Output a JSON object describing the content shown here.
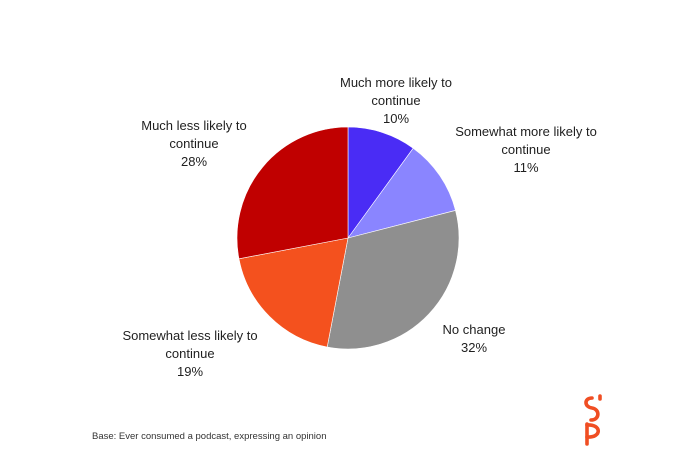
{
  "footnote": "Base: Ever consumed a podcast, expressing an opinion",
  "logo": {
    "icon": "sp-monogram-logo",
    "color": "#f04e23"
  },
  "chart_data": {
    "type": "pie",
    "start_angle_deg": 0,
    "direction": "clockwise",
    "slices": [
      {
        "label_lines": [
          "Much more likely to",
          "continue"
        ],
        "value_label": "10%",
        "value": 10,
        "color": "#4a2cf5"
      },
      {
        "label_lines": [
          "Somewhat more likely to",
          "continue"
        ],
        "value_label": "11%",
        "value": 11,
        "color": "#8a85ff"
      },
      {
        "label_lines": [
          "No change"
        ],
        "value_label": "32%",
        "value": 32,
        "color": "#8f8f8f"
      },
      {
        "label_lines": [
          "Somewhat less likely to",
          "continue"
        ],
        "value_label": "19%",
        "value": 19,
        "color": "#f4511e"
      },
      {
        "label_lines": [
          "Much less likely to",
          "continue"
        ],
        "value_label": "28%",
        "value": 28,
        "color": "#c00000"
      }
    ]
  }
}
